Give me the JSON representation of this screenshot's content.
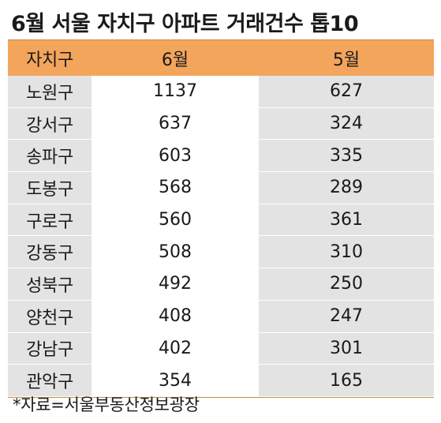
{
  "title": "6월 서울 자치구 아파트 거래건수 톱10",
  "source": "*자료=서울부동산정보광장",
  "colors": {
    "header_bg": "#f3a55c",
    "shaded_cell": "#e3e3e3"
  },
  "chart_data": {
    "type": "table",
    "title": "6월 서울 자치구 아파트 거래건수 톱10",
    "columns": [
      "자치구",
      "6월",
      "5월"
    ],
    "rows": [
      [
        "노원구",
        "1137",
        "627"
      ],
      [
        "강서구",
        "637",
        "324"
      ],
      [
        "송파구",
        "603",
        "335"
      ],
      [
        "도봉구",
        "568",
        "289"
      ],
      [
        "구로구",
        "560",
        "361"
      ],
      [
        "강동구",
        "508",
        "310"
      ],
      [
        "성북구",
        "492",
        "250"
      ],
      [
        "양천구",
        "408",
        "247"
      ],
      [
        "강남구",
        "402",
        "301"
      ],
      [
        "관악구",
        "354",
        "165"
      ]
    ]
  }
}
